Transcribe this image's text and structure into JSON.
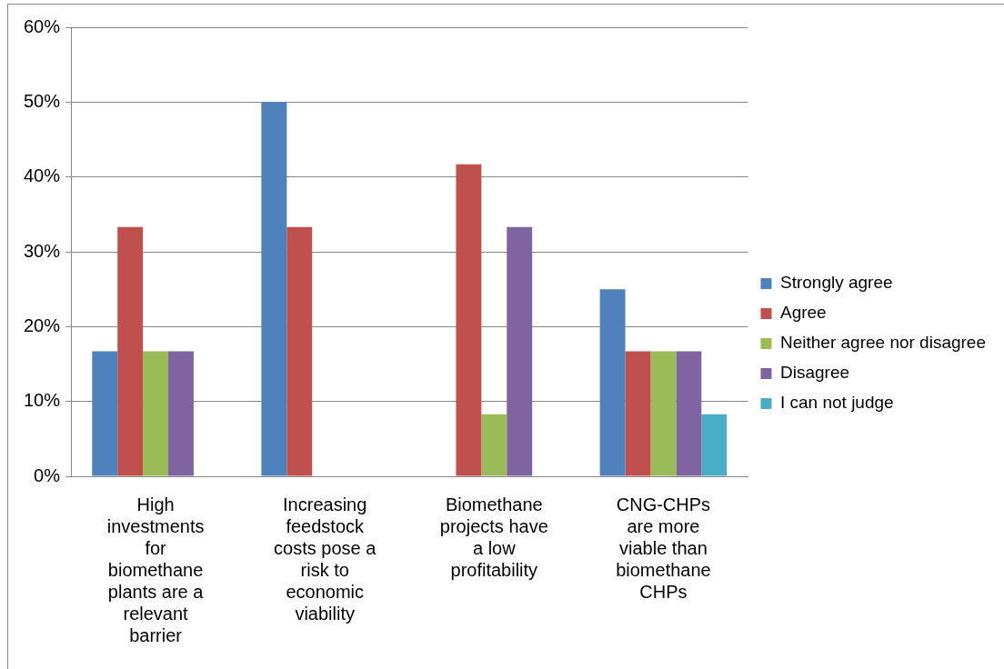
{
  "chart_data": {
    "type": "bar",
    "categories": [
      "High investments for biomethane plants are a relevant barrier",
      "Increasing feedstock costs pose a risk to economic viability",
      "Biomethane projects have a low profitability",
      "CNG-CHPs are more viable than biomethane CHPs"
    ],
    "series": [
      {
        "name": "Strongly agree",
        "color": "#4f81bd",
        "values": [
          16.7,
          50,
          0,
          25
        ]
      },
      {
        "name": "Agree",
        "color": "#c0504d",
        "values": [
          33.3,
          33.3,
          41.7,
          16.7
        ]
      },
      {
        "name": "Neither agree nor disagree",
        "color": "#9bbb59",
        "values": [
          16.7,
          0,
          8.3,
          16.7
        ]
      },
      {
        "name": "Disagree",
        "color": "#8064a2",
        "values": [
          16.7,
          0,
          33.3,
          16.7
        ]
      },
      {
        "name": "I can not judge",
        "color": "#4bacc6",
        "values": [
          0,
          0,
          0,
          8.3
        ]
      }
    ],
    "ylim": [
      0,
      60
    ],
    "yticks": [
      {
        "value": 0,
        "label": "0%"
      },
      {
        "value": 10,
        "label": "10%"
      },
      {
        "value": 20,
        "label": "20%"
      },
      {
        "value": 30,
        "label": "30%"
      },
      {
        "value": 40,
        "label": "40%"
      },
      {
        "value": 50,
        "label": "50%"
      },
      {
        "value": 60,
        "label": "60%"
      }
    ],
    "grid": "y",
    "legend": "right"
  }
}
